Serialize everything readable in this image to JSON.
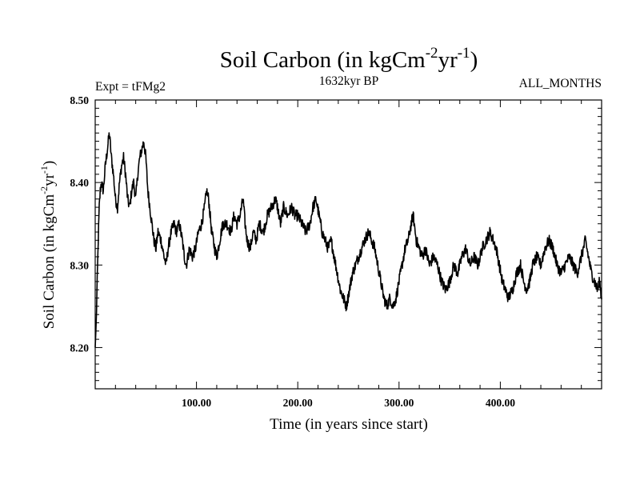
{
  "chart_data": {
    "type": "line",
    "title": {
      "main": "Soil Carbon (in kgCm",
      "sup1": "-2",
      "mid": "yr",
      "sup2": "-1",
      "end": ")"
    },
    "header": {
      "left": "Expt = tFMg2",
      "center": "1632kyr BP",
      "right": "ALL_MONTHS"
    },
    "xlabel": "Time (in years since start)",
    "ylabel": {
      "main": "Soil Carbon (in kgCm",
      "sup1": "-2",
      "mid": "yr",
      "sup2": "-1",
      "end": ")"
    },
    "xlim": [
      0,
      500
    ],
    "ylim": [
      8.15,
      8.5
    ],
    "x_ticks": [
      {
        "value": 100,
        "label": "100.00"
      },
      {
        "value": 200,
        "label": "200.00"
      },
      {
        "value": 300,
        "label": "300.00"
      },
      {
        "value": 400,
        "label": "400.00"
      }
    ],
    "y_ticks": [
      {
        "value": 8.2,
        "label": "8.20"
      },
      {
        "value": 8.3,
        "label": "8.30"
      },
      {
        "value": 8.4,
        "label": "8.40"
      },
      {
        "value": 8.5,
        "label": "8.50"
      }
    ],
    "series": [
      {
        "name": "Soil Carbon",
        "color": "#000000",
        "points": [
          [
            0,
            8.2
          ],
          [
            1,
            8.23
          ],
          [
            2,
            8.28
          ],
          [
            3,
            8.33
          ],
          [
            4,
            8.37
          ],
          [
            5,
            8.39
          ],
          [
            6,
            8.4
          ],
          [
            8,
            8.39
          ],
          [
            10,
            8.42
          ],
          [
            12,
            8.44
          ],
          [
            14,
            8.46
          ],
          [
            16,
            8.43
          ],
          [
            18,
            8.41
          ],
          [
            20,
            8.38
          ],
          [
            22,
            8.37
          ],
          [
            24,
            8.4
          ],
          [
            26,
            8.42
          ],
          [
            28,
            8.43
          ],
          [
            30,
            8.41
          ],
          [
            32,
            8.38
          ],
          [
            34,
            8.37
          ],
          [
            36,
            8.39
          ],
          [
            38,
            8.4
          ],
          [
            40,
            8.38
          ],
          [
            42,
            8.41
          ],
          [
            44,
            8.43
          ],
          [
            46,
            8.44
          ],
          [
            48,
            8.45
          ],
          [
            50,
            8.43
          ],
          [
            52,
            8.39
          ],
          [
            54,
            8.37
          ],
          [
            56,
            8.35
          ],
          [
            58,
            8.33
          ],
          [
            60,
            8.32
          ],
          [
            62,
            8.34
          ],
          [
            65,
            8.33
          ],
          [
            68,
            8.31
          ],
          [
            70,
            8.3
          ],
          [
            72,
            8.32
          ],
          [
            75,
            8.34
          ],
          [
            78,
            8.35
          ],
          [
            80,
            8.34
          ],
          [
            83,
            8.35
          ],
          [
            86,
            8.33
          ],
          [
            88,
            8.31
          ],
          [
            90,
            8.3
          ],
          [
            93,
            8.32
          ],
          [
            96,
            8.31
          ],
          [
            99,
            8.32
          ],
          [
            102,
            8.34
          ],
          [
            105,
            8.35
          ],
          [
            108,
            8.37
          ],
          [
            110,
            8.39
          ],
          [
            112,
            8.38
          ],
          [
            115,
            8.34
          ],
          [
            118,
            8.32
          ],
          [
            120,
            8.31
          ],
          [
            123,
            8.33
          ],
          [
            126,
            8.35
          ],
          [
            130,
            8.35
          ],
          [
            134,
            8.34
          ],
          [
            137,
            8.36
          ],
          [
            140,
            8.35
          ],
          [
            143,
            8.36
          ],
          [
            146,
            8.38
          ],
          [
            148,
            8.35
          ],
          [
            150,
            8.33
          ],
          [
            153,
            8.32
          ],
          [
            156,
            8.34
          ],
          [
            159,
            8.33
          ],
          [
            162,
            8.35
          ],
          [
            166,
            8.34
          ],
          [
            170,
            8.36
          ],
          [
            174,
            8.37
          ],
          [
            178,
            8.38
          ],
          [
            180,
            8.37
          ],
          [
            183,
            8.35
          ],
          [
            186,
            8.37
          ],
          [
            190,
            8.36
          ],
          [
            194,
            8.37
          ],
          [
            197,
            8.36
          ],
          [
            200,
            8.36
          ],
          [
            204,
            8.35
          ],
          [
            208,
            8.34
          ],
          [
            212,
            8.35
          ],
          [
            215,
            8.37
          ],
          [
            218,
            8.38
          ],
          [
            221,
            8.36
          ],
          [
            224,
            8.34
          ],
          [
            227,
            8.33
          ],
          [
            230,
            8.32
          ],
          [
            233,
            8.33
          ],
          [
            236,
            8.31
          ],
          [
            239,
            8.29
          ],
          [
            242,
            8.27
          ],
          [
            245,
            8.26
          ],
          [
            248,
            8.25
          ],
          [
            251,
            8.27
          ],
          [
            254,
            8.29
          ],
          [
            257,
            8.3
          ],
          [
            260,
            8.31
          ],
          [
            263,
            8.32
          ],
          [
            266,
            8.33
          ],
          [
            270,
            8.34
          ],
          [
            273,
            8.33
          ],
          [
            276,
            8.32
          ],
          [
            279,
            8.3
          ],
          [
            282,
            8.28
          ],
          [
            285,
            8.26
          ],
          [
            288,
            8.25
          ],
          [
            291,
            8.26
          ],
          [
            294,
            8.25
          ],
          [
            297,
            8.26
          ],
          [
            300,
            8.28
          ],
          [
            303,
            8.3
          ],
          [
            306,
            8.32
          ],
          [
            309,
            8.33
          ],
          [
            312,
            8.35
          ],
          [
            314,
            8.36
          ],
          [
            317,
            8.33
          ],
          [
            320,
            8.32
          ],
          [
            323,
            8.31
          ],
          [
            326,
            8.32
          ],
          [
            330,
            8.3
          ],
          [
            334,
            8.31
          ],
          [
            338,
            8.3
          ],
          [
            342,
            8.28
          ],
          [
            346,
            8.27
          ],
          [
            350,
            8.28
          ],
          [
            354,
            8.3
          ],
          [
            358,
            8.29
          ],
          [
            362,
            8.31
          ],
          [
            366,
            8.32
          ],
          [
            370,
            8.3
          ],
          [
            374,
            8.31
          ],
          [
            378,
            8.3
          ],
          [
            382,
            8.32
          ],
          [
            386,
            8.33
          ],
          [
            390,
            8.34
          ],
          [
            393,
            8.33
          ],
          [
            396,
            8.32
          ],
          [
            399,
            8.3
          ],
          [
            402,
            8.28
          ],
          [
            405,
            8.27
          ],
          [
            408,
            8.26
          ],
          [
            412,
            8.27
          ],
          [
            416,
            8.29
          ],
          [
            420,
            8.3
          ],
          [
            423,
            8.28
          ],
          [
            426,
            8.27
          ],
          [
            429,
            8.28
          ],
          [
            432,
            8.3
          ],
          [
            436,
            8.31
          ],
          [
            440,
            8.3
          ],
          [
            444,
            8.32
          ],
          [
            448,
            8.33
          ],
          [
            452,
            8.32
          ],
          [
            456,
            8.3
          ],
          [
            460,
            8.29
          ],
          [
            464,
            8.3
          ],
          [
            468,
            8.31
          ],
          [
            472,
            8.3
          ],
          [
            476,
            8.29
          ],
          [
            480,
            8.31
          ],
          [
            484,
            8.33
          ],
          [
            487,
            8.31
          ],
          [
            490,
            8.29
          ],
          [
            493,
            8.28
          ],
          [
            496,
            8.27
          ],
          [
            498,
            8.28
          ],
          [
            500,
            8.26
          ]
        ]
      }
    ]
  }
}
